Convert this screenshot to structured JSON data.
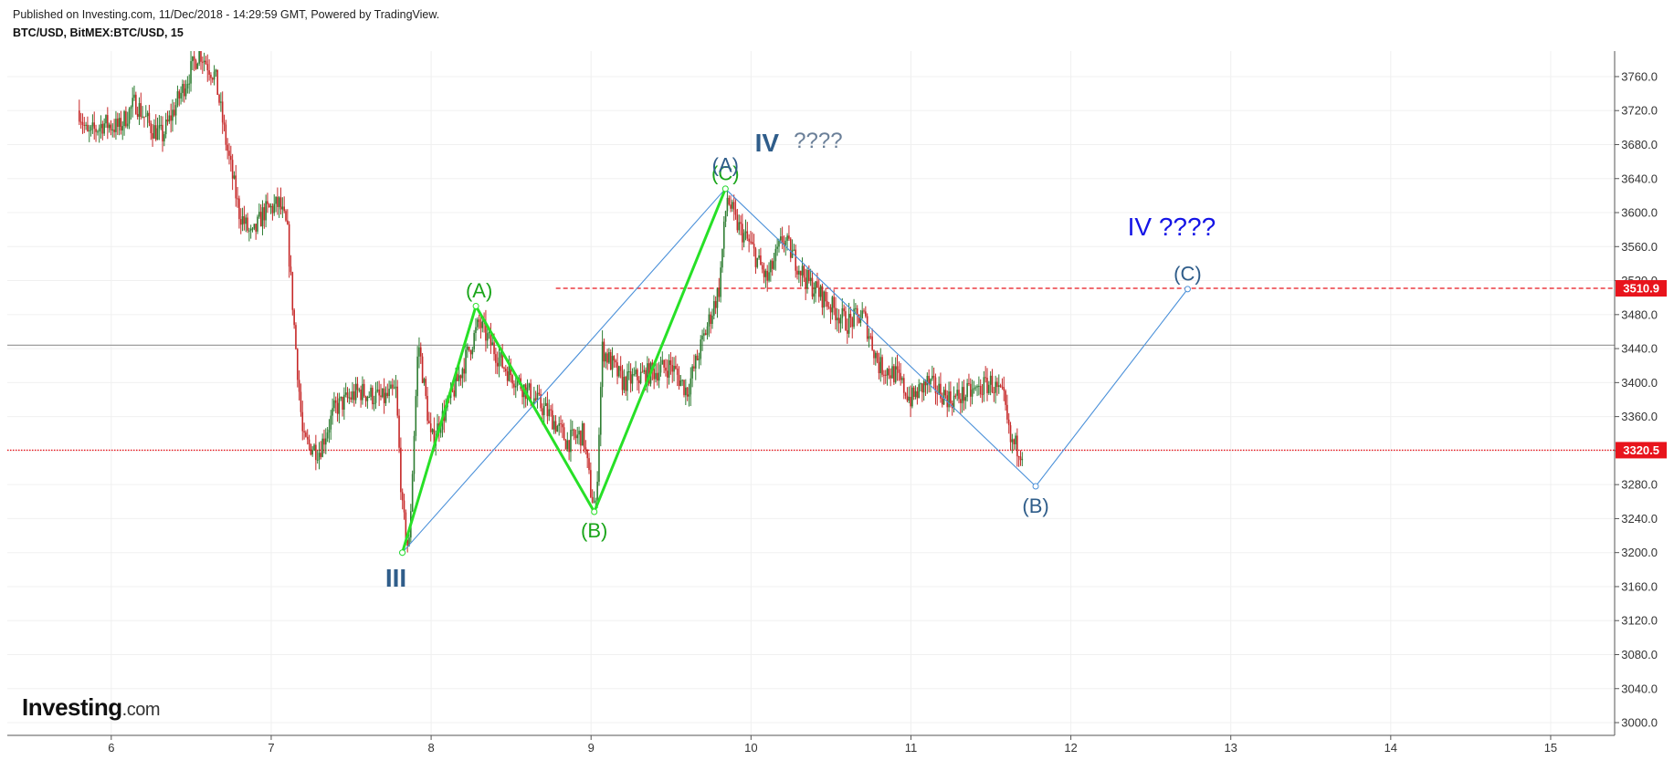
{
  "header": {
    "published": "Published on Investing.com, 11/Dec/2018 - 14:29:59 GMT, Powered by TradingView.",
    "symbol": "BTC/USD, BitMEX:BTC/USD, 15"
  },
  "logo": {
    "main": "Investing",
    "suffix": ".com"
  },
  "colors": {
    "up": "#2e7d32",
    "down": "#c62828",
    "wave_green": "#27e027",
    "wave_blue": "#4a90d9",
    "label_green": "#1aa51a",
    "label_navy": "#2f5d8a",
    "label_blue": "#1414e6",
    "price_red": "#e8141c"
  },
  "chart_data": {
    "type": "candlestick",
    "x_unit": "day of December 2018",
    "xlim": [
      5.35,
      15.4
    ],
    "ylim": [
      2985,
      3790
    ],
    "x_ticks": [
      6,
      7,
      8,
      9,
      10,
      11,
      12,
      13,
      14,
      15
    ],
    "y_ticks": [
      3000.0,
      3040.0,
      3080.0,
      3120.0,
      3160.0,
      3200.0,
      3240.0,
      3280.0,
      3320.0,
      3360.0,
      3400.0,
      3440.0,
      3480.0,
      3520.0,
      3560.0,
      3600.0,
      3640.0,
      3680.0,
      3720.0,
      3760.0
    ],
    "price_path": [
      [
        5.8,
        3720
      ],
      [
        5.85,
        3690
      ],
      [
        5.95,
        3705
      ],
      [
        6.05,
        3700
      ],
      [
        6.15,
        3730
      ],
      [
        6.25,
        3700
      ],
      [
        6.32,
        3690
      ],
      [
        6.55,
        3790
      ],
      [
        6.65,
        3760
      ],
      [
        6.72,
        3680
      ],
      [
        6.8,
        3600
      ],
      [
        6.88,
        3570
      ],
      [
        6.95,
        3600
      ],
      [
        7.05,
        3610
      ],
      [
        7.1,
        3580
      ],
      [
        7.15,
        3450
      ],
      [
        7.2,
        3330
      ],
      [
        7.3,
        3320
      ],
      [
        7.4,
        3370
      ],
      [
        7.55,
        3390
      ],
      [
        7.7,
        3380
      ],
      [
        7.78,
        3390
      ],
      [
        7.82,
        3250
      ],
      [
        7.86,
        3200
      ],
      [
        7.92,
        3450
      ],
      [
        8.0,
        3330
      ],
      [
        8.12,
        3380
      ],
      [
        8.2,
        3420
      ],
      [
        8.3,
        3470
      ],
      [
        8.45,
        3420
      ],
      [
        8.6,
        3390
      ],
      [
        8.75,
        3360
      ],
      [
        8.85,
        3330
      ],
      [
        8.95,
        3340
      ],
      [
        9.0,
        3270
      ],
      [
        9.03,
        3250
      ],
      [
        9.07,
        3440
      ],
      [
        9.2,
        3400
      ],
      [
        9.35,
        3410
      ],
      [
        9.5,
        3420
      ],
      [
        9.6,
        3390
      ],
      [
        9.7,
        3450
      ],
      [
        9.8,
        3510
      ],
      [
        9.85,
        3620
      ],
      [
        9.9,
        3590
      ],
      [
        10.0,
        3560
      ],
      [
        10.1,
        3520
      ],
      [
        10.2,
        3570
      ],
      [
        10.35,
        3520
      ],
      [
        10.5,
        3490
      ],
      [
        10.6,
        3470
      ],
      [
        10.7,
        3480
      ],
      [
        10.8,
        3420
      ],
      [
        10.9,
        3410
      ],
      [
        11.0,
        3380
      ],
      [
        11.1,
        3400
      ],
      [
        11.25,
        3380
      ],
      [
        11.4,
        3390
      ],
      [
        11.5,
        3400
      ],
      [
        11.58,
        3380
      ],
      [
        11.62,
        3330
      ],
      [
        11.7,
        3320
      ]
    ],
    "wave_green": [
      [
        7.82,
        3200
      ],
      [
        8.28,
        3490
      ],
      [
        9.02,
        3248
      ],
      [
        9.84,
        3628
      ]
    ],
    "wave_blue": [
      [
        7.82,
        3200
      ],
      [
        9.84,
        3628
      ],
      [
        11.78,
        3278
      ],
      [
        12.73,
        3510
      ]
    ],
    "horizontal_lines": [
      {
        "price": 3510.9,
        "style": "dashed",
        "color": "#e8141c",
        "x_start": 8.78,
        "label": "3510.9"
      },
      {
        "price": 3320.5,
        "style": "dotted",
        "color": "#e8141c",
        "x_start": 5.35,
        "label": "3320.5"
      },
      {
        "price": 3444.0,
        "style": "solid",
        "color": "#9e9e9e",
        "x_start": 5.35
      }
    ],
    "annotations": [
      {
        "text": "(A)",
        "x": 8.3,
        "y": 3500,
        "color": "green"
      },
      {
        "text": "(B)",
        "x": 9.02,
        "y": 3218,
        "color": "green"
      },
      {
        "text": "(C)",
        "x": 9.84,
        "y": 3638,
        "color": "green"
      },
      {
        "text": "(A)",
        "x": 9.84,
        "y": 3648,
        "color": "navy"
      },
      {
        "text": "(B)",
        "x": 11.78,
        "y": 3247,
        "color": "navy"
      },
      {
        "text": "(C)",
        "x": 12.73,
        "y": 3520,
        "color": "navy"
      },
      {
        "text": "III",
        "x": 7.78,
        "y": 3160,
        "color": "navy_bold"
      },
      {
        "text": "IV",
        "x": 10.1,
        "y": 3672,
        "color": "navy_bold"
      },
      {
        "text": "????",
        "x": 10.42,
        "y": 3676,
        "color": "grey"
      },
      {
        "text": "IV ????",
        "x": 12.63,
        "y": 3573,
        "color": "blue"
      }
    ]
  }
}
